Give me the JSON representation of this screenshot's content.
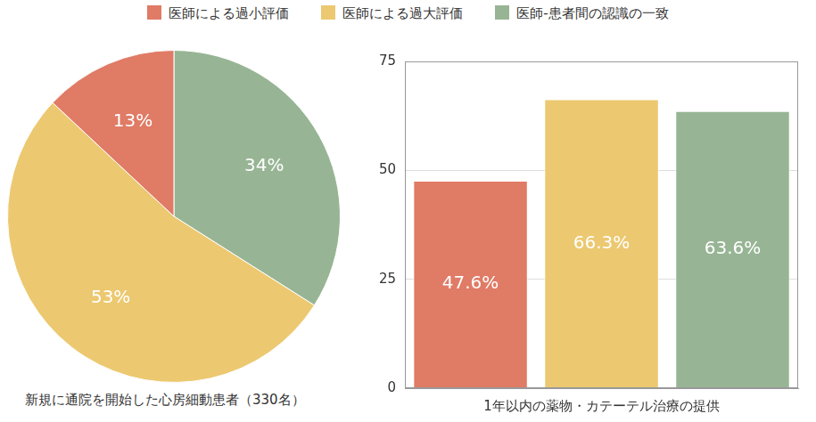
{
  "chart_data": [
    {
      "type": "pie",
      "subtitle": "新規に通院を開始した心房細動患者（330名）",
      "categories": [
        "医師-患者間の認識の一致",
        "医師による過大評価",
        "医師による過小評価"
      ],
      "values": [
        34,
        53,
        13
      ],
      "value_labels": [
        "34%",
        "53%",
        "13%"
      ],
      "colors": [
        "#97b594",
        "#ecc870",
        "#e07b65"
      ],
      "data_labels": true
    },
    {
      "type": "bar",
      "xlabel": "1年以内の薬物・カテーテル治療の提供",
      "categories": [
        "医師による過小評価",
        "医師による過大評価",
        "医師-患者間の認識の一致"
      ],
      "values": [
        47.6,
        66.3,
        63.6
      ],
      "value_labels": [
        "47.6%",
        "66.3%",
        "63.6%"
      ],
      "colors": [
        "#e07b65",
        "#ecc870",
        "#97b594"
      ],
      "ylim": [
        0,
        75
      ],
      "yticks": [
        0,
        25,
        50,
        75
      ],
      "grid": true,
      "data_labels": true,
      "tick_labels": "y",
      "legend": "top"
    }
  ]
}
